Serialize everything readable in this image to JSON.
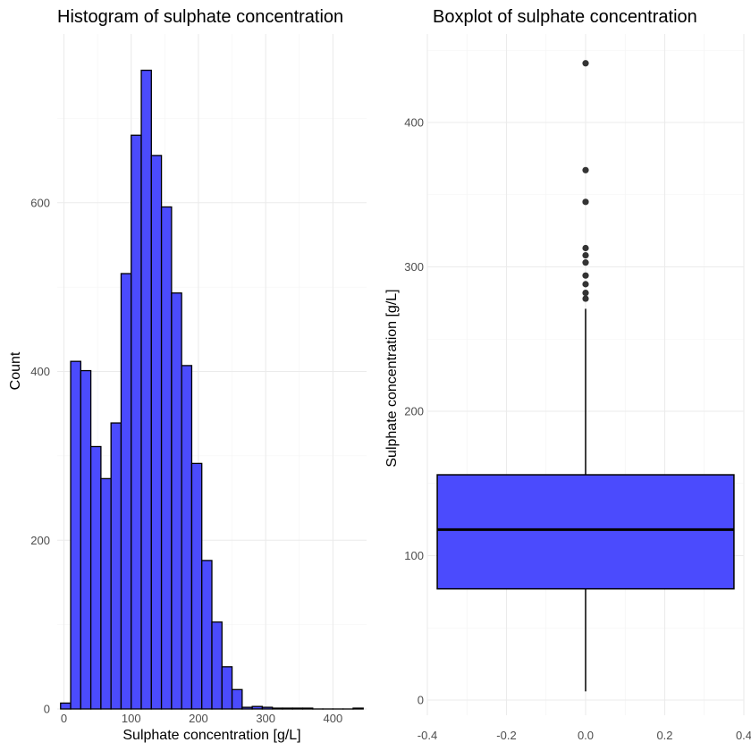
{
  "chart_data": [
    {
      "type": "bar",
      "subtype": "histogram",
      "title": "Histogram of sulphate concentration",
      "xlabel": "Sulphate concentration [g/L]",
      "ylabel": "Count",
      "fill_color": "#4b4bfd",
      "outline_color": "#000000",
      "xlim": [
        -10,
        450
      ],
      "ylim": [
        0,
        800
      ],
      "x_ticks": [
        0,
        100,
        200,
        300,
        400
      ],
      "y_ticks": [
        0,
        200,
        400,
        600
      ],
      "bins": [
        {
          "x0": -5,
          "x1": 10,
          "count": 7
        },
        {
          "x0": 10,
          "x1": 25,
          "count": 412
        },
        {
          "x0": 25,
          "x1": 40,
          "count": 401
        },
        {
          "x0": 40,
          "x1": 55,
          "count": 311
        },
        {
          "x0": 55,
          "x1": 70,
          "count": 273
        },
        {
          "x0": 70,
          "x1": 85,
          "count": 339
        },
        {
          "x0": 85,
          "x1": 100,
          "count": 516
        },
        {
          "x0": 100,
          "x1": 115,
          "count": 680
        },
        {
          "x0": 115,
          "x1": 130,
          "count": 757
        },
        {
          "x0": 130,
          "x1": 145,
          "count": 656
        },
        {
          "x0": 145,
          "x1": 160,
          "count": 595
        },
        {
          "x0": 160,
          "x1": 175,
          "count": 493
        },
        {
          "x0": 175,
          "x1": 190,
          "count": 407
        },
        {
          "x0": 190,
          "x1": 205,
          "count": 291
        },
        {
          "x0": 205,
          "x1": 220,
          "count": 176
        },
        {
          "x0": 220,
          "x1": 235,
          "count": 103
        },
        {
          "x0": 235,
          "x1": 250,
          "count": 50
        },
        {
          "x0": 250,
          "x1": 265,
          "count": 23
        },
        {
          "x0": 265,
          "x1": 280,
          "count": 2
        },
        {
          "x0": 280,
          "x1": 295,
          "count": 3
        },
        {
          "x0": 295,
          "x1": 310,
          "count": 2
        },
        {
          "x0": 310,
          "x1": 325,
          "count": 1
        },
        {
          "x0": 325,
          "x1": 340,
          "count": 1
        },
        {
          "x0": 340,
          "x1": 355,
          "count": 1
        },
        {
          "x0": 355,
          "x1": 370,
          "count": 1
        },
        {
          "x0": 370,
          "x1": 385,
          "count": 0
        },
        {
          "x0": 385,
          "x1": 400,
          "count": 0
        },
        {
          "x0": 400,
          "x1": 415,
          "count": 0
        },
        {
          "x0": 415,
          "x1": 430,
          "count": 0
        },
        {
          "x0": 430,
          "x1": 445,
          "count": 1
        }
      ],
      "grid": true
    },
    {
      "type": "box",
      "title": "Boxplot of sulphate concentration",
      "ylabel": "Sulphate concentration [g/L]",
      "fill_color": "#4b4bfd",
      "outline_color": "#000000",
      "xlim": [
        -0.4,
        0.4
      ],
      "ylim": [
        0,
        450
      ],
      "x_ticks": [
        -0.4,
        -0.2,
        0.0,
        0.2,
        0.4
      ],
      "x_tick_labels": [
        "-0.4",
        "-0.2",
        "0.0",
        "0.2",
        "0.4"
      ],
      "y_ticks": [
        0,
        100,
        200,
        300,
        400
      ],
      "box": {
        "x_left": -0.375,
        "x_right": 0.375,
        "q1": 77,
        "median": 118,
        "q3": 156,
        "whisker_low": 6,
        "whisker_high": 271
      },
      "outliers": [
        278,
        282,
        288,
        294,
        303,
        308,
        313,
        345,
        367,
        441
      ],
      "grid": true
    }
  ]
}
